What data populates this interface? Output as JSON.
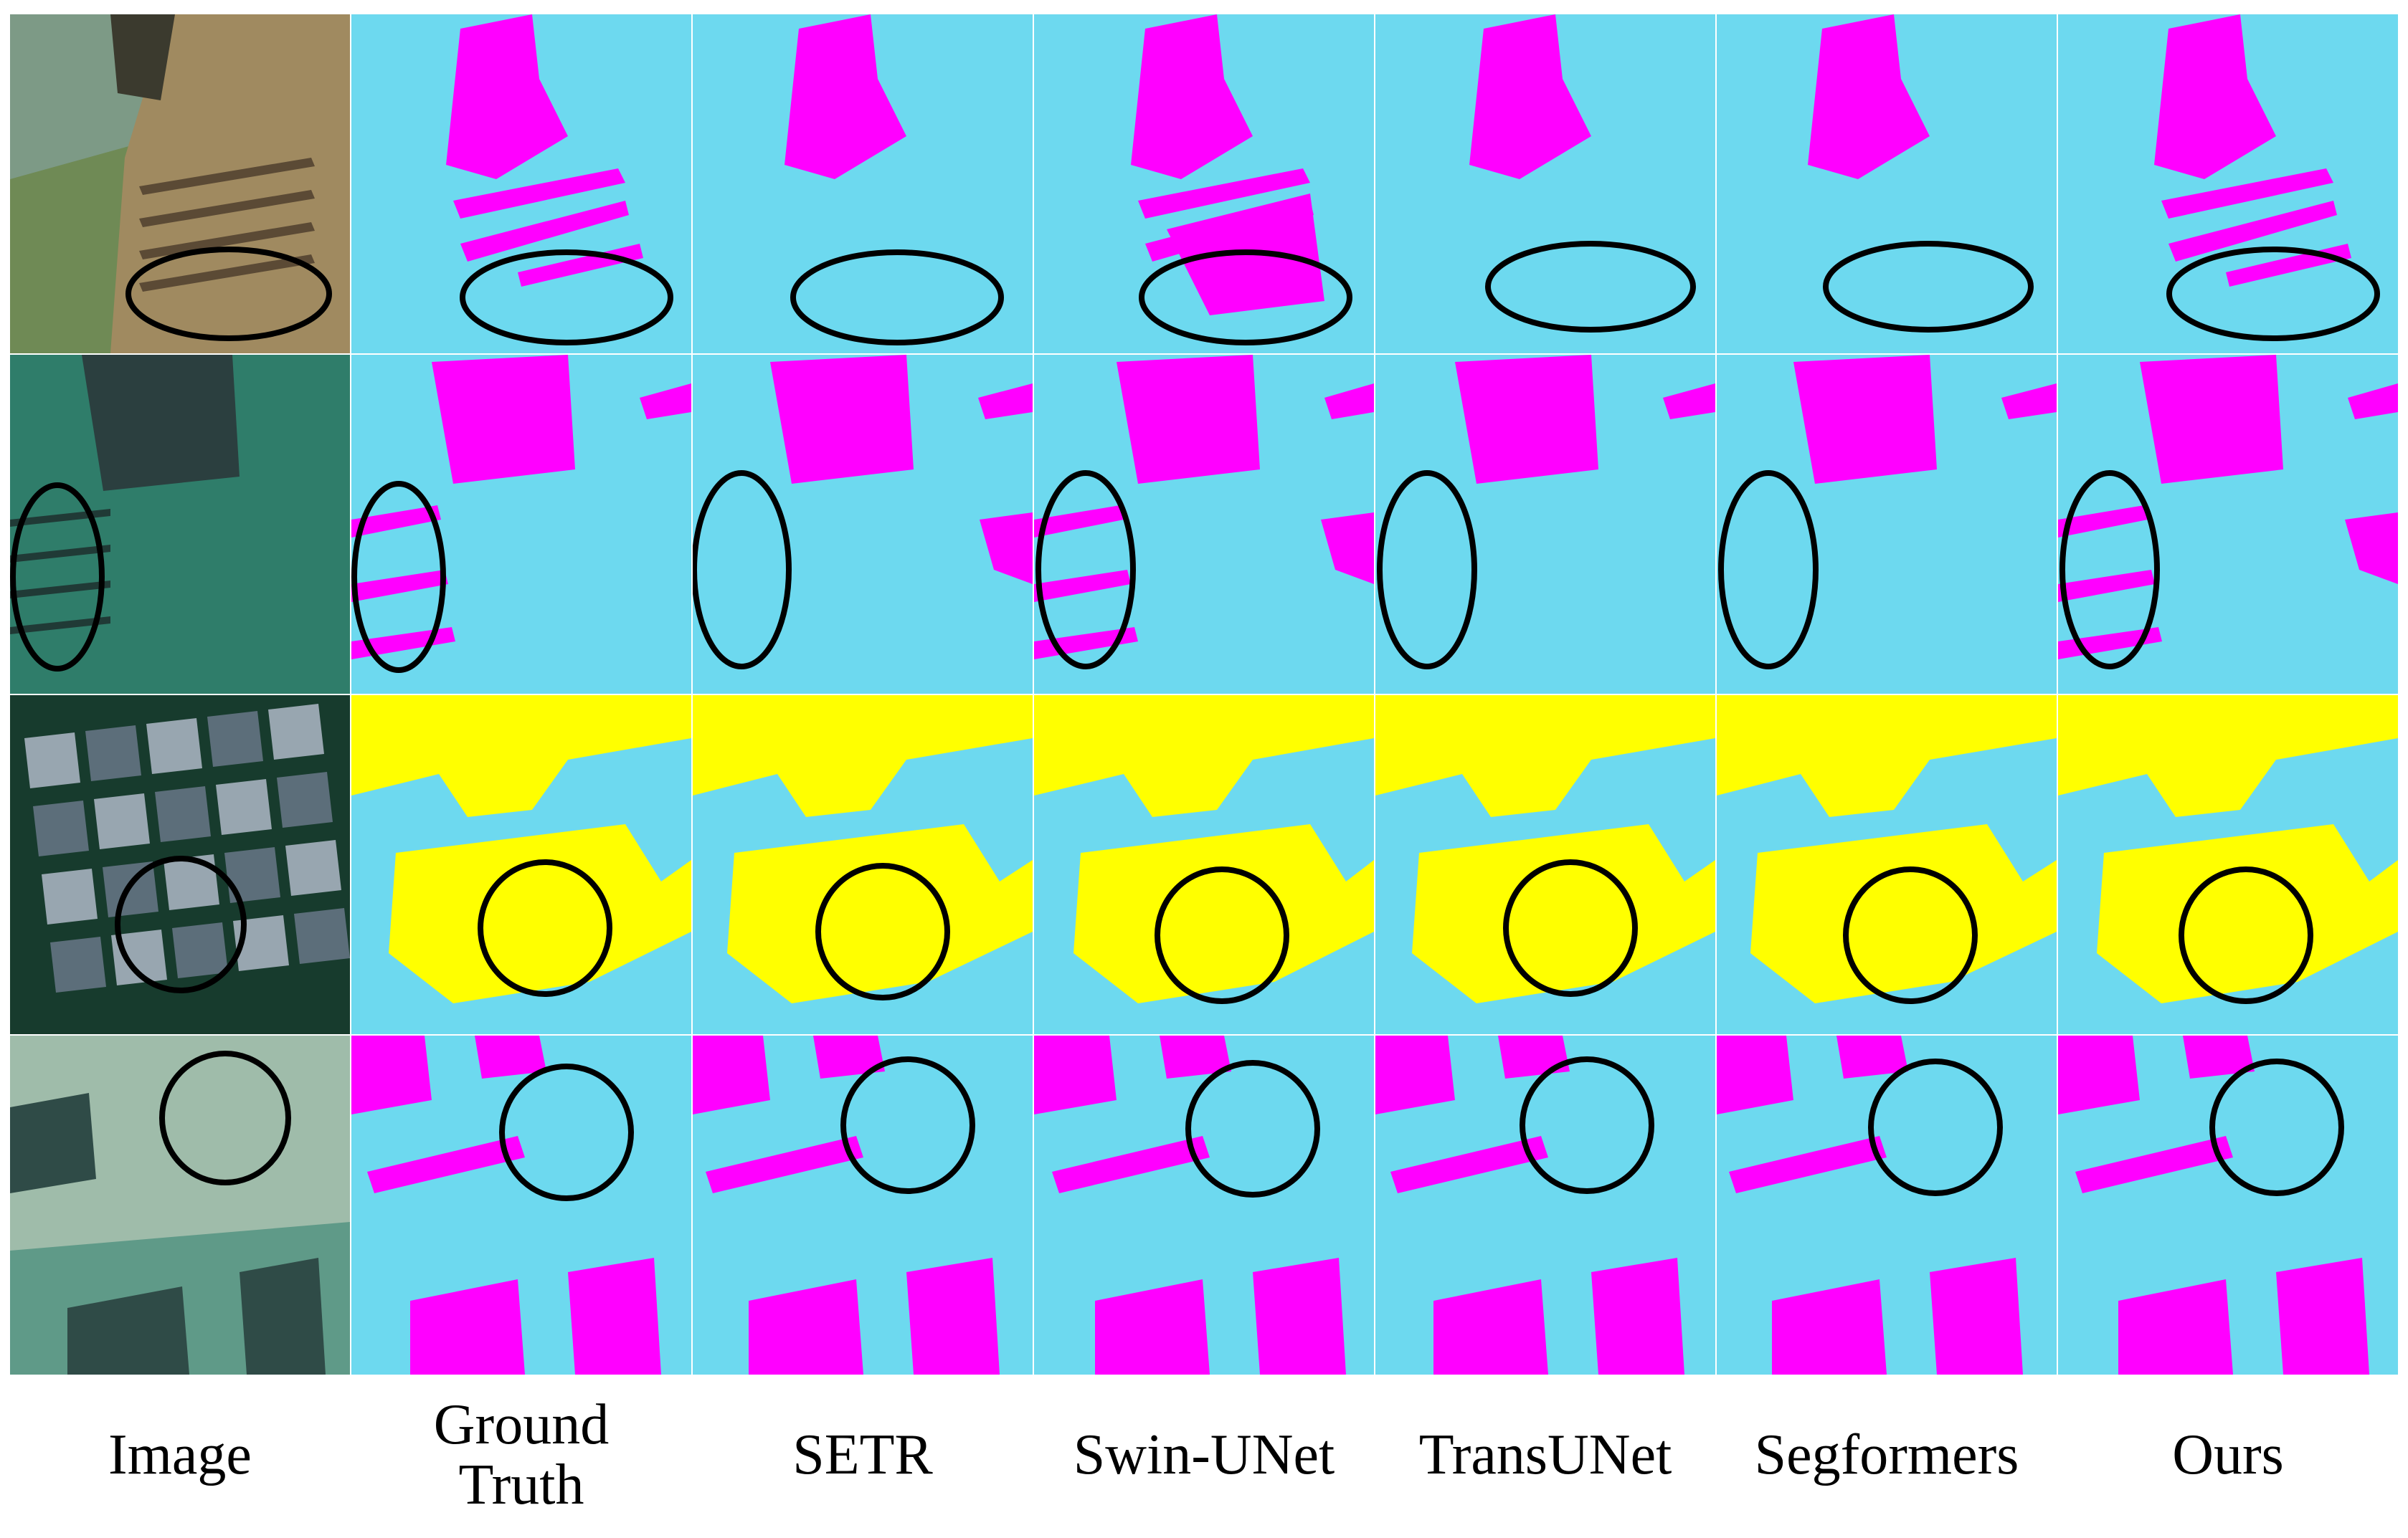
{
  "columns": [
    {
      "label": "Image"
    },
    {
      "label": "Ground\nTruth"
    },
    {
      "label": "SETR"
    },
    {
      "label": "Swin-UNet"
    },
    {
      "label": "TransUNet"
    },
    {
      "label": "Segformers"
    },
    {
      "label": "Ours"
    }
  ],
  "rows": 4,
  "colors": {
    "background_class": "#6dd9ef",
    "class_magenta": "#ff00ff",
    "class_yellow": "#ffff00",
    "highlight_ellipse": "#000000",
    "divider": "#ffffff"
  }
}
